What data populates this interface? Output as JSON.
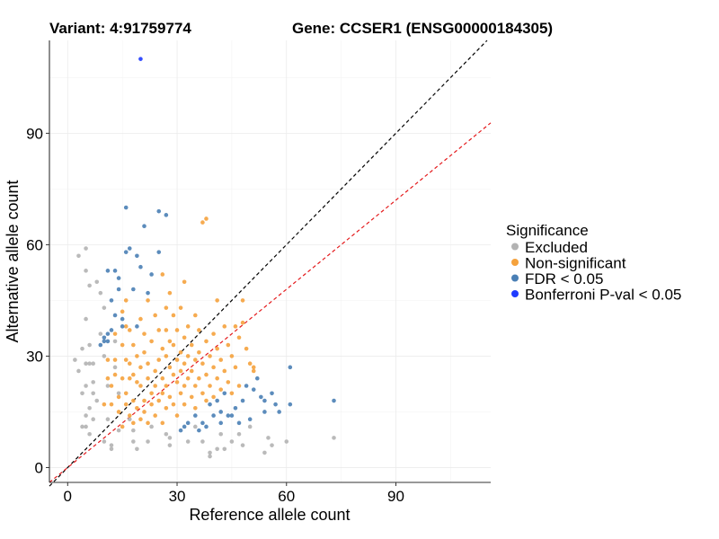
{
  "chart_data": {
    "type": "scatter",
    "title_left": "Variant: 4:91759774",
    "title_right": "Gene: CCSER1 (ENSG00000184305)",
    "xlabel": "Reference allele count",
    "ylabel": "Alternative allele count",
    "xlim": [
      -5,
      116
    ],
    "ylim": [
      -4,
      115
    ],
    "x_ticks": [
      0,
      30,
      60,
      90
    ],
    "y_ticks": [
      0,
      30,
      60,
      90
    ],
    "grid": true,
    "legend_position": "right",
    "legend_title": "Significance",
    "reference_lines": [
      {
        "slope": 1,
        "intercept": 0,
        "color": "#000000",
        "style": "dashed"
      },
      {
        "slope": 0.8,
        "intercept": 0,
        "color": "#e41a1c",
        "style": "dashed"
      }
    ],
    "series": [
      {
        "name": "Excluded",
        "color": "#b3b3b3",
        "points": [
          [
            2,
            29
          ],
          [
            3,
            57
          ],
          [
            3,
            26
          ],
          [
            4,
            20
          ],
          [
            4,
            11
          ],
          [
            4,
            32
          ],
          [
            5,
            59
          ],
          [
            5,
            53
          ],
          [
            5,
            40
          ],
          [
            5,
            28
          ],
          [
            5,
            22
          ],
          [
            5,
            14
          ],
          [
            5,
            11
          ],
          [
            6,
            49
          ],
          [
            6,
            33
          ],
          [
            6,
            28
          ],
          [
            6,
            16
          ],
          [
            6,
            9
          ],
          [
            7,
            28
          ],
          [
            7,
            23
          ],
          [
            7,
            20
          ],
          [
            7,
            13
          ],
          [
            8,
            50
          ],
          [
            8,
            18
          ],
          [
            9,
            47
          ],
          [
            9,
            36
          ],
          [
            10,
            43
          ],
          [
            10,
            30
          ],
          [
            10,
            7
          ],
          [
            11,
            22
          ],
          [
            11,
            13
          ],
          [
            12,
            6
          ],
          [
            12,
            5
          ],
          [
            13,
            27
          ],
          [
            13,
            34
          ],
          [
            14,
            20
          ],
          [
            14,
            10
          ],
          [
            17,
            13
          ],
          [
            18,
            10
          ],
          [
            18,
            7
          ],
          [
            19,
            5
          ],
          [
            22,
            7
          ],
          [
            23,
            11
          ],
          [
            27,
            9
          ],
          [
            28,
            8
          ],
          [
            28,
            6
          ],
          [
            33,
            7
          ],
          [
            35,
            11
          ],
          [
            37,
            7
          ],
          [
            39,
            4
          ],
          [
            39,
            3
          ],
          [
            41,
            5
          ],
          [
            42,
            9
          ],
          [
            43,
            5
          ],
          [
            45,
            7
          ],
          [
            47,
            9
          ],
          [
            48,
            6
          ],
          [
            50,
            11
          ],
          [
            54,
            4
          ],
          [
            55,
            8
          ],
          [
            56,
            6
          ],
          [
            60,
            7
          ],
          [
            73,
            8
          ]
        ]
      },
      {
        "name": "Non-significant",
        "color": "#f5a23d",
        "points": [
          [
            10,
            17
          ],
          [
            11,
            29
          ],
          [
            11,
            24
          ],
          [
            12,
            17
          ],
          [
            12,
            22
          ],
          [
            13,
            36
          ],
          [
            13,
            29
          ],
          [
            13,
            25
          ],
          [
            14,
            19
          ],
          [
            14,
            15
          ],
          [
            15,
            42
          ],
          [
            15,
            33
          ],
          [
            15,
            24
          ],
          [
            15,
            11
          ],
          [
            16,
            45
          ],
          [
            16,
            38
          ],
          [
            16,
            29
          ],
          [
            16,
            20
          ],
          [
            16,
            17
          ],
          [
            17,
            37
          ],
          [
            17,
            28
          ],
          [
            17,
            24
          ],
          [
            17,
            14
          ],
          [
            18,
            33
          ],
          [
            18,
            25
          ],
          [
            18,
            18
          ],
          [
            18,
            12
          ],
          [
            19,
            30
          ],
          [
            19,
            23
          ],
          [
            19,
            16
          ],
          [
            20,
            40
          ],
          [
            20,
            27
          ],
          [
            20,
            22
          ],
          [
            20,
            13
          ],
          [
            21,
            36
          ],
          [
            21,
            31
          ],
          [
            21,
            18
          ],
          [
            21,
            15
          ],
          [
            22,
            45
          ],
          [
            22,
            28
          ],
          [
            22,
            24
          ],
          [
            22,
            12
          ],
          [
            23,
            34
          ],
          [
            23,
            20
          ],
          [
            23,
            17
          ],
          [
            24,
            41
          ],
          [
            24,
            26
          ],
          [
            24,
            22
          ],
          [
            24,
            14
          ],
          [
            25,
            37
          ],
          [
            25,
            29
          ],
          [
            25,
            18
          ],
          [
            26,
            52
          ],
          [
            26,
            32
          ],
          [
            26,
            24
          ],
          [
            26,
            20
          ],
          [
            26,
            12
          ],
          [
            27,
            43
          ],
          [
            27,
            37
          ],
          [
            27,
            30
          ],
          [
            27,
            22
          ],
          [
            27,
            16
          ],
          [
            28,
            47
          ],
          [
            28,
            34
          ],
          [
            28,
            27
          ],
          [
            28,
            19
          ],
          [
            29,
            41
          ],
          [
            29,
            33
          ],
          [
            29,
            25
          ],
          [
            29,
            17
          ],
          [
            30,
            37
          ],
          [
            30,
            29
          ],
          [
            30,
            23
          ],
          [
            30,
            14
          ],
          [
            31,
            43
          ],
          [
            31,
            31
          ],
          [
            31,
            26
          ],
          [
            31,
            20
          ],
          [
            32,
            50
          ],
          [
            32,
            35
          ],
          [
            32,
            28
          ],
          [
            32,
            22
          ],
          [
            32,
            17
          ],
          [
            33,
            38
          ],
          [
            33,
            30
          ],
          [
            33,
            24
          ],
          [
            34,
            33
          ],
          [
            34,
            26
          ],
          [
            34,
            19
          ],
          [
            35,
            41
          ],
          [
            35,
            29
          ],
          [
            35,
            22
          ],
          [
            35,
            16
          ],
          [
            36,
            37
          ],
          [
            36,
            31
          ],
          [
            36,
            24
          ],
          [
            37,
            66
          ],
          [
            37,
            28
          ],
          [
            37,
            20
          ],
          [
            38,
            67
          ],
          [
            38,
            34
          ],
          [
            38,
            25
          ],
          [
            38,
            18
          ],
          [
            39,
            30
          ],
          [
            39,
            22
          ],
          [
            40,
            36
          ],
          [
            40,
            27
          ],
          [
            40,
            19
          ],
          [
            41,
            45
          ],
          [
            41,
            32
          ],
          [
            41,
            24
          ],
          [
            42,
            29
          ],
          [
            42,
            21
          ],
          [
            43,
            38
          ],
          [
            43,
            26
          ],
          [
            44,
            33
          ],
          [
            44,
            23
          ],
          [
            45,
            30
          ],
          [
            45,
            20
          ],
          [
            46,
            38
          ],
          [
            46,
            27
          ],
          [
            47,
            35
          ],
          [
            47,
            22
          ],
          [
            48,
            39
          ],
          [
            48,
            45
          ],
          [
            49,
            32
          ],
          [
            50,
            28
          ],
          [
            51,
            27
          ],
          [
            51,
            26
          ]
        ]
      },
      {
        "name": "FDR < 0.05",
        "color": "#4a7fb5",
        "points": [
          [
            9,
            33
          ],
          [
            10,
            34
          ],
          [
            10,
            35
          ],
          [
            11,
            36
          ],
          [
            11,
            34
          ],
          [
            11,
            53
          ],
          [
            12,
            37
          ],
          [
            12,
            45
          ],
          [
            13,
            53
          ],
          [
            13,
            41
          ],
          [
            14,
            48
          ],
          [
            14,
            51
          ],
          [
            15,
            40
          ],
          [
            15,
            38
          ],
          [
            16,
            70
          ],
          [
            16,
            58
          ],
          [
            17,
            59
          ],
          [
            18,
            48
          ],
          [
            19,
            38
          ],
          [
            19,
            57
          ],
          [
            20,
            54
          ],
          [
            21,
            65
          ],
          [
            22,
            47
          ],
          [
            23,
            52
          ],
          [
            25,
            69
          ],
          [
            25,
            58
          ],
          [
            27,
            68
          ],
          [
            31,
            10
          ],
          [
            32,
            11
          ],
          [
            33,
            12
          ],
          [
            35,
            14
          ],
          [
            36,
            10
          ],
          [
            37,
            12
          ],
          [
            38,
            11
          ],
          [
            39,
            17
          ],
          [
            40,
            14
          ],
          [
            41,
            18
          ],
          [
            42,
            12
          ],
          [
            42,
            15
          ],
          [
            43,
            20
          ],
          [
            44,
            14
          ],
          [
            45,
            14
          ],
          [
            46,
            16
          ],
          [
            47,
            12
          ],
          [
            48,
            18
          ],
          [
            49,
            22
          ],
          [
            50,
            13
          ],
          [
            51,
            21
          ],
          [
            52,
            24
          ],
          [
            53,
            19
          ],
          [
            54,
            18
          ],
          [
            54,
            15
          ],
          [
            56,
            20
          ],
          [
            57,
            17
          ],
          [
            58,
            15
          ],
          [
            61,
            17
          ],
          [
            61,
            27
          ],
          [
            73,
            18
          ]
        ]
      },
      {
        "name": "Bonferroni P-val < 0.05",
        "color": "#1f3bff",
        "points": [
          [
            20,
            110
          ]
        ]
      }
    ]
  }
}
